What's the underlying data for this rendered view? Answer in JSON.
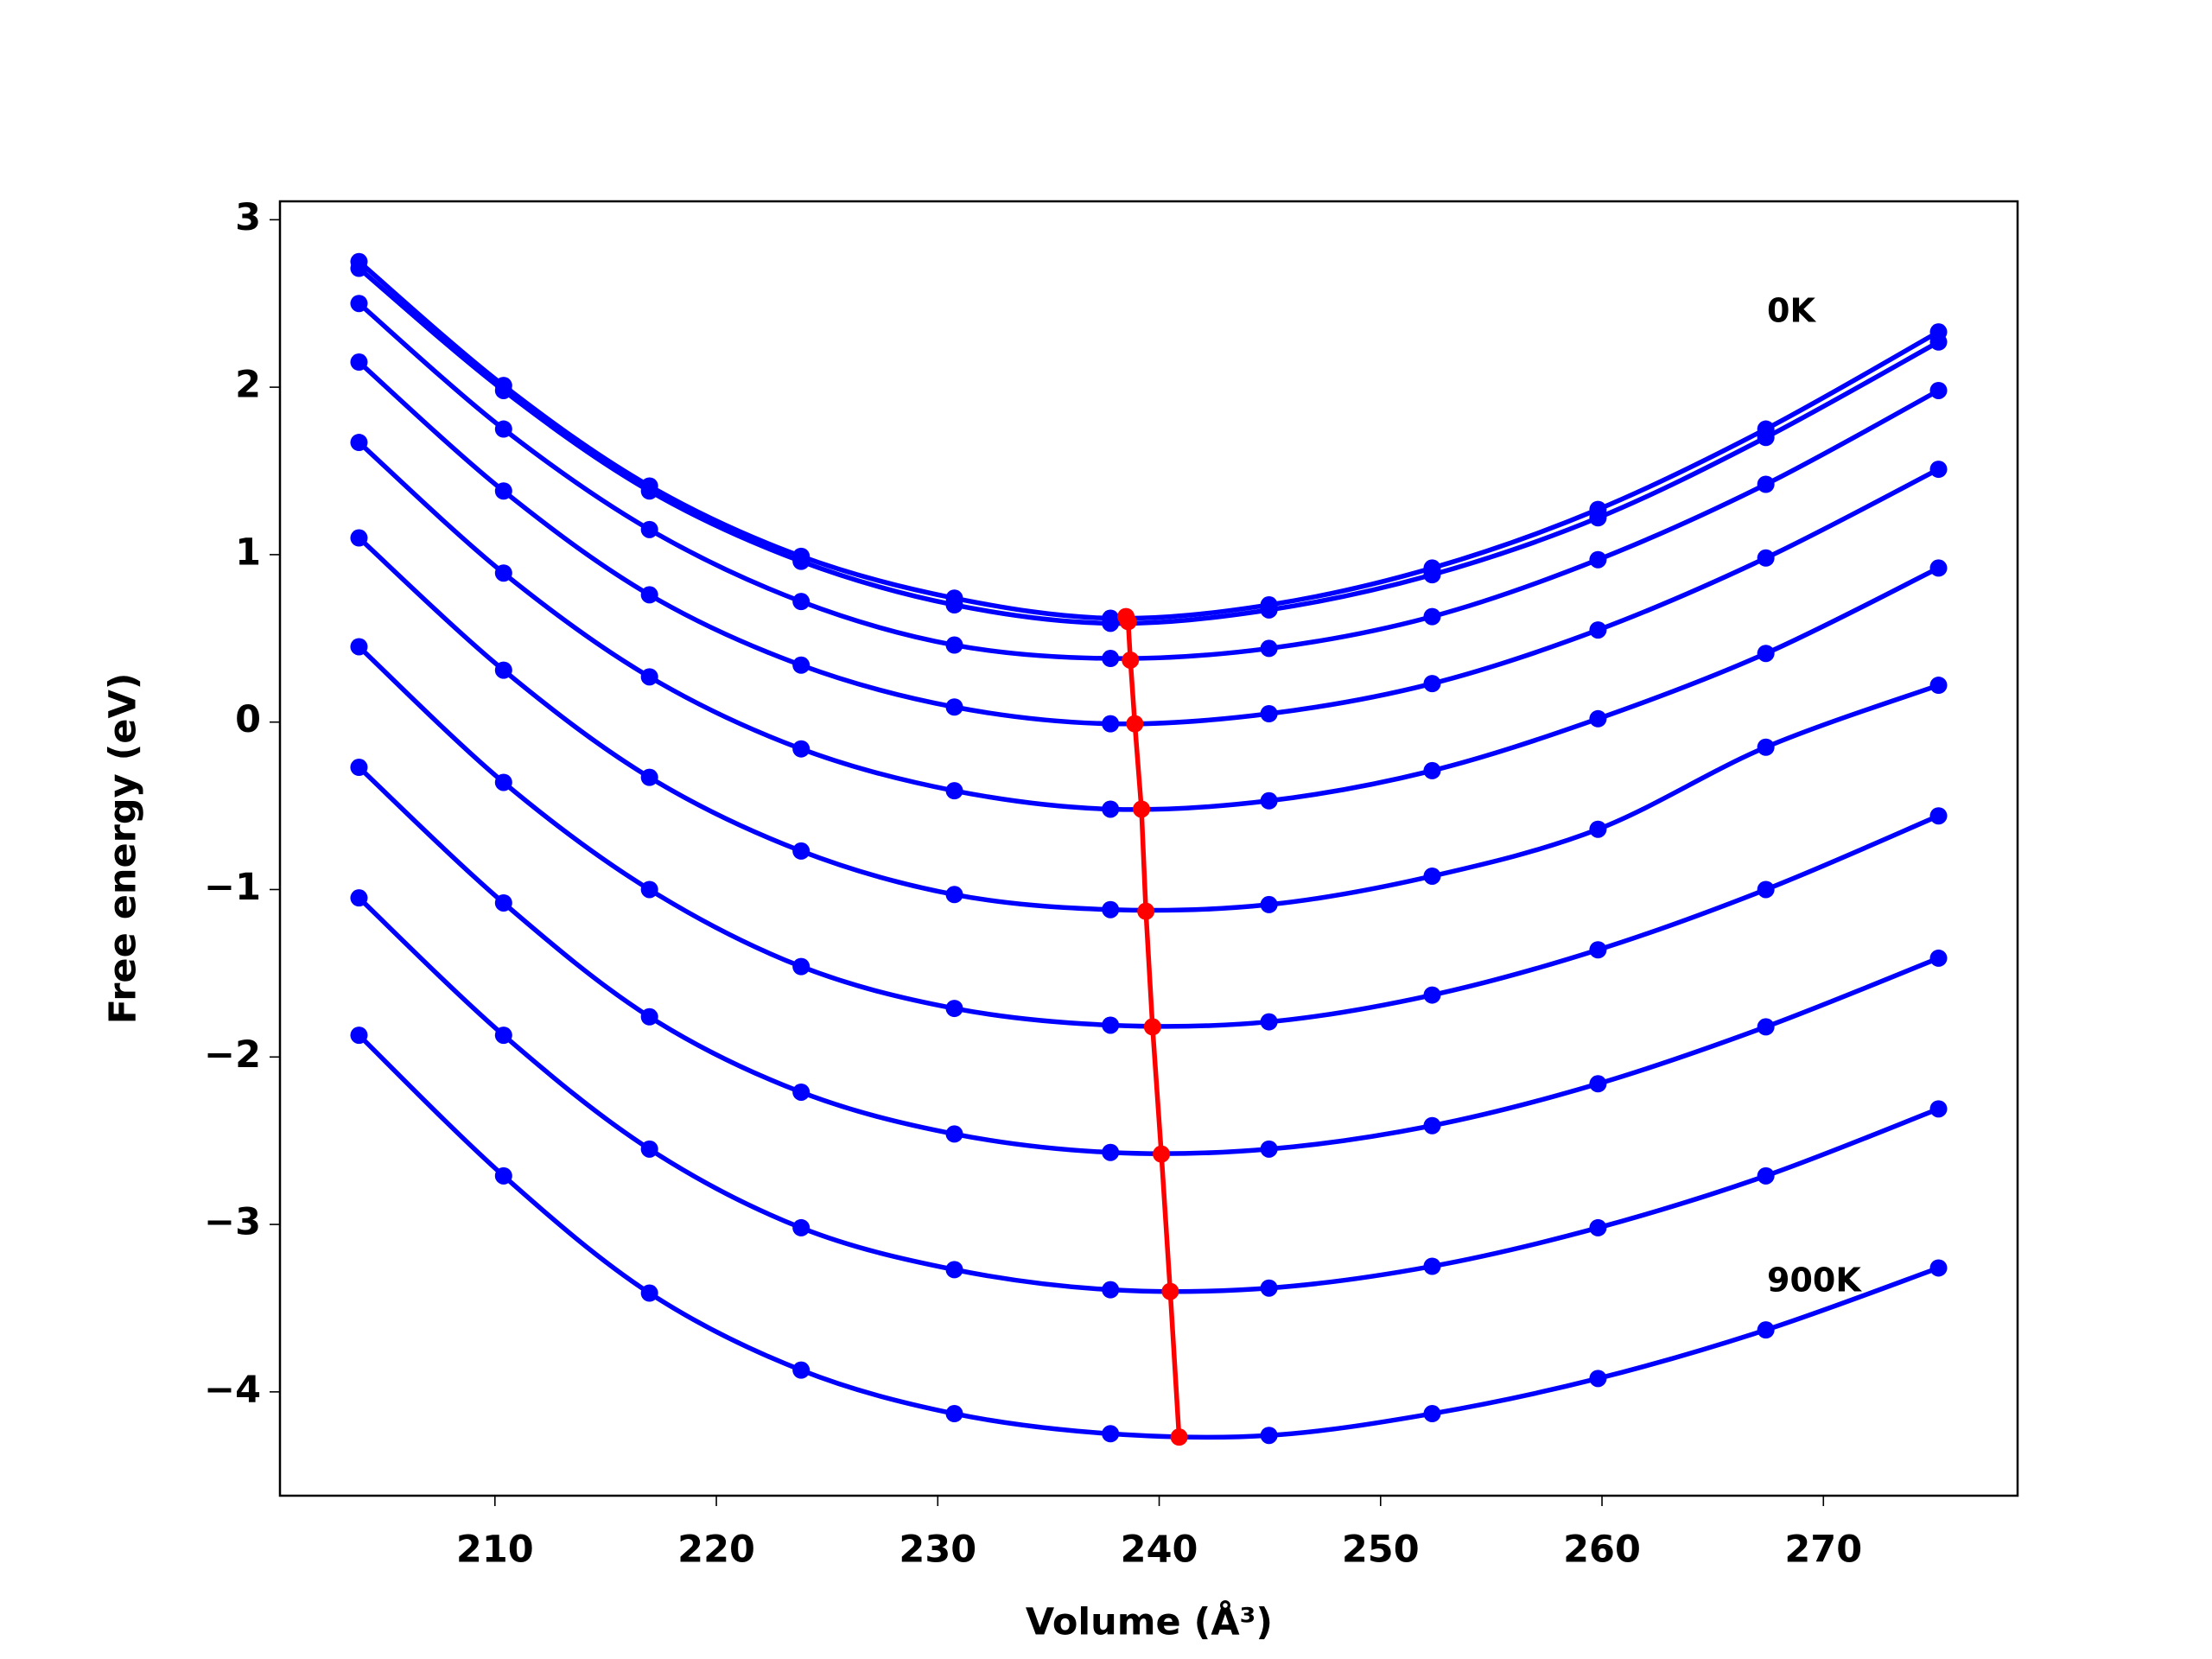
{
  "chart_data": {
    "type": "line",
    "xlabel": "Volume (Å³)",
    "ylabel": "Free energy (eV)",
    "annotations": [
      "0K",
      "900K"
    ],
    "x": [
      203.86,
      210.39,
      216.98,
      223.83,
      230.75,
      237.8,
      244.96,
      252.33,
      259.82,
      267.4,
      275.2
    ],
    "series": [
      {
        "color": "#0000ff",
        "values": [
          2.75,
          2.01,
          1.41,
          0.99,
          0.74,
          0.62,
          0.7,
          0.92,
          1.27,
          1.75,
          2.33
        ]
      },
      {
        "color": "#0000ff",
        "values": [
          2.71,
          1.98,
          1.38,
          0.96,
          0.7,
          0.59,
          0.67,
          0.88,
          1.22,
          1.7,
          2.27
        ]
      },
      {
        "color": "#0000ff",
        "values": [
          2.5,
          1.75,
          1.15,
          0.72,
          0.46,
          0.38,
          0.44,
          0.63,
          0.97,
          1.42,
          1.98
        ]
      },
      {
        "color": "#0000ff",
        "values": [
          2.15,
          1.38,
          0.76,
          0.34,
          0.09,
          -0.01,
          0.05,
          0.23,
          0.55,
          0.98,
          1.51
        ]
      },
      {
        "color": "#0000ff",
        "values": [
          1.67,
          0.89,
          0.27,
          -0.16,
          -0.41,
          -0.52,
          -0.47,
          -0.29,
          0.02,
          0.41,
          0.92
        ]
      },
      {
        "color": "#0000ff",
        "values": [
          1.1,
          0.31,
          -0.33,
          -0.77,
          -1.03,
          -1.12,
          -1.09,
          -0.92,
          -0.64,
          -0.15,
          0.22
        ]
      },
      {
        "color": "#0000ff",
        "values": [
          0.45,
          -0.36,
          -1.0,
          -1.46,
          -1.71,
          -1.81,
          -1.79,
          -1.63,
          -1.36,
          -1.0,
          -0.56
        ]
      },
      {
        "color": "#0000ff",
        "values": [
          -0.27,
          -1.08,
          -1.76,
          -2.21,
          -2.46,
          -2.57,
          -2.55,
          -2.41,
          -2.16,
          -1.82,
          -1.41
        ]
      },
      {
        "color": "#0000ff",
        "values": [
          -1.05,
          -1.87,
          -2.55,
          -3.02,
          -3.27,
          -3.39,
          -3.38,
          -3.25,
          -3.02,
          -2.71,
          -2.31
        ]
      },
      {
        "color": "#0000ff",
        "values": [
          -1.87,
          -2.71,
          -3.41,
          -3.87,
          -4.13,
          -4.25,
          -4.26,
          -4.13,
          -3.92,
          -3.63,
          -3.26
        ]
      },
      {
        "color": "#ff0000",
        "x": [
          238.5,
          238.6,
          238.7,
          238.9,
          239.2,
          239.4,
          239.7,
          240.1,
          240.5,
          240.9
        ],
        "values": [
          0.63,
          0.6,
          0.37,
          -0.01,
          -0.52,
          -1.13,
          -1.82,
          -2.58,
          -3.4,
          -4.27
        ]
      }
    ],
    "xlim": [
      200.29,
      278.77
    ],
    "ylim": [
      -4.62,
      3.11
    ],
    "xticks": [
      210,
      220,
      230,
      240,
      250,
      260,
      270
    ],
    "yticks": [
      {
        "value": -4,
        "label": "−4"
      },
      {
        "value": -3,
        "label": "−3"
      },
      {
        "value": -2,
        "label": "−2"
      },
      {
        "value": -1,
        "label": "−1"
      },
      0,
      1,
      2,
      3
    ],
    "grid": false
  }
}
